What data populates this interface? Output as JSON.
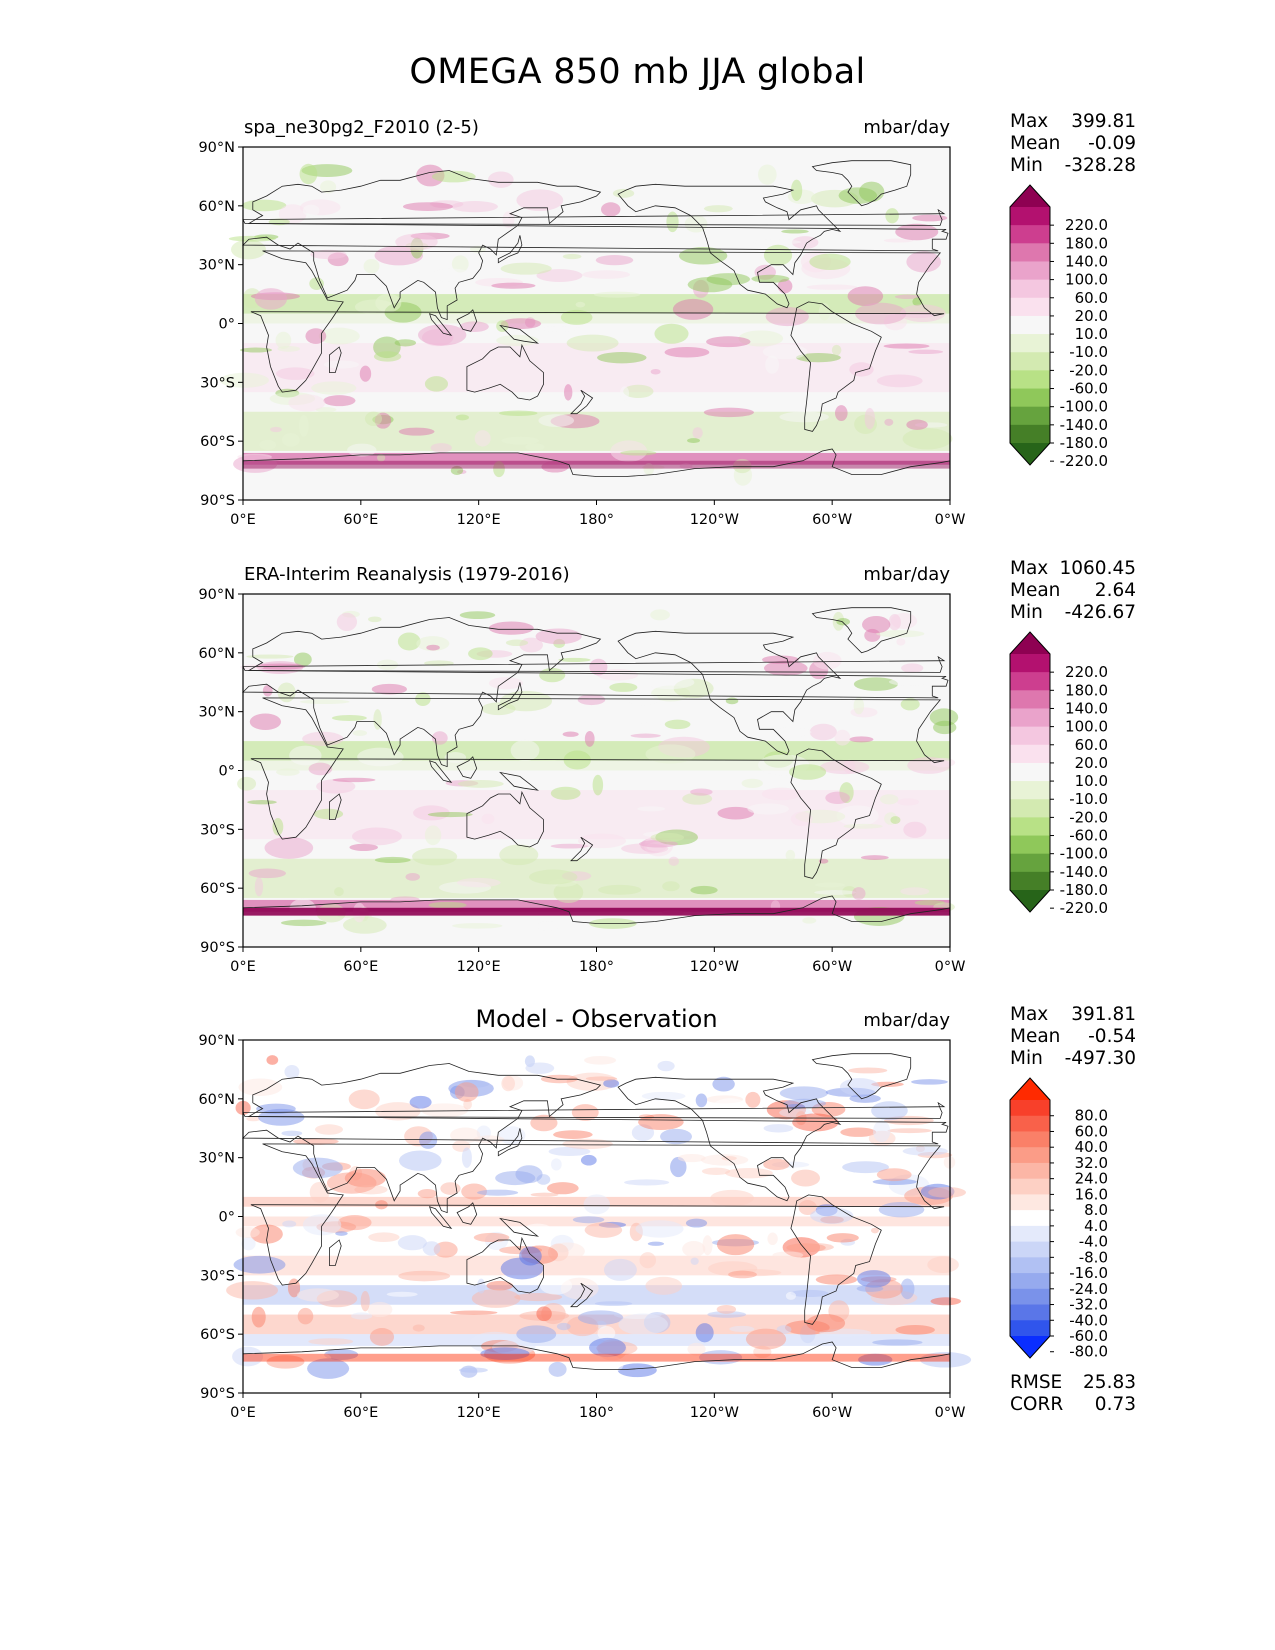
{
  "title": "OMEGA 850 mb JJA global",
  "units": "mbar/day",
  "x_ticks": [
    "0°E",
    "60°E",
    "120°E",
    "180°",
    "120°W",
    "60°W",
    "0°W"
  ],
  "y_ticks": [
    "90°N",
    "60°N",
    "30°N",
    "0°",
    "30°S",
    "60°S",
    "90°S"
  ],
  "panels": [
    {
      "left_title": "spa_ne30pg2_F2010 (2-5)",
      "center_title": "",
      "stats": {
        "max_label": "Max",
        "max": "399.81",
        "mean_label": "Mean",
        "mean": "-0.09",
        "min_label": "Min",
        "min": "-328.28"
      },
      "colorbar": {
        "labels": [
          "220.0",
          "180.0",
          "140.0",
          "100.0",
          "60.0",
          "20.0",
          "10.0",
          "-10.0",
          "-20.0",
          "-60.0",
          "-100.0",
          "-140.0",
          "-180.0",
          "-220.0"
        ],
        "colors": [
          "#8e0152",
          "#b3116f",
          "#cd3e8f",
          "#de77ae",
          "#eaa3cb",
          "#f4c7e0",
          "#fae1ee",
          "#f7f7f7",
          "#e8f3d6",
          "#d3eab1",
          "#b8e186",
          "#8fc85a",
          "#66a33e",
          "#457f27",
          "#276419"
        ]
      }
    },
    {
      "left_title": "ERA-Interim Reanalysis (1979-2016)",
      "center_title": "",
      "stats": {
        "max_label": "Max",
        "max": "1060.45",
        "mean_label": "Mean",
        "mean": "2.64",
        "min_label": "Min",
        "min": "-426.67"
      },
      "colorbar": {
        "labels": [
          "220.0",
          "180.0",
          "140.0",
          "100.0",
          "60.0",
          "20.0",
          "10.0",
          "-10.0",
          "-20.0",
          "-60.0",
          "-100.0",
          "-140.0",
          "-180.0",
          "-220.0"
        ],
        "colors": [
          "#8e0152",
          "#b3116f",
          "#cd3e8f",
          "#de77ae",
          "#eaa3cb",
          "#f4c7e0",
          "#fae1ee",
          "#f7f7f7",
          "#e8f3d6",
          "#d3eab1",
          "#b8e186",
          "#8fc85a",
          "#66a33e",
          "#457f27",
          "#276419"
        ]
      }
    },
    {
      "left_title": "",
      "center_title": "Model - Observation",
      "stats": {
        "max_label": "Max",
        "max": "391.81",
        "mean_label": "Mean",
        "mean": "-0.54",
        "min_label": "Min",
        "min": "-497.30"
      },
      "extra_stats": {
        "rmse_label": "RMSE",
        "rmse": "25.83",
        "corr_label": "CORR",
        "corr": "0.73"
      },
      "colorbar": {
        "labels": [
          "80.0",
          "60.0",
          "40.0",
          "32.0",
          "24.0",
          "16.0",
          "8.0",
          "4.0",
          "-4.0",
          "-8.0",
          "-16.0",
          "-24.0",
          "-32.0",
          "-40.0",
          "-60.0",
          "-80.0"
        ],
        "colors": [
          "#ff2a00",
          "#f8402a",
          "#f9614a",
          "#fa8068",
          "#fb9c87",
          "#fcb6a6",
          "#fdd0c4",
          "#fee8e1",
          "#ffffff",
          "#e4eafb",
          "#cbd6f7",
          "#b1c1f3",
          "#96aaee",
          "#7a92ea",
          "#5a76e8",
          "#3055ec",
          "#0a2eff"
        ]
      }
    }
  ],
  "chart_data": [
    {
      "type": "heatmap",
      "title": "spa_ne30pg2_F2010 (2-5)",
      "units": "mbar/day",
      "xlim": [
        0,
        360
      ],
      "ylim": [
        -90,
        90
      ],
      "stats": {
        "max": 399.81,
        "mean": -0.09,
        "min": -328.28
      },
      "levels": [
        -220,
        -180,
        -140,
        -100,
        -60,
        -20,
        -10,
        10,
        20,
        60,
        100,
        140,
        180,
        220
      ]
    },
    {
      "type": "heatmap",
      "title": "ERA-Interim Reanalysis (1979-2016)",
      "units": "mbar/day",
      "xlim": [
        0,
        360
      ],
      "ylim": [
        -90,
        90
      ],
      "stats": {
        "max": 1060.45,
        "mean": 2.64,
        "min": -426.67
      },
      "levels": [
        -220,
        -180,
        -140,
        -100,
        -60,
        -20,
        -10,
        10,
        20,
        60,
        100,
        140,
        180,
        220
      ]
    },
    {
      "type": "heatmap",
      "title": "Model - Observation",
      "units": "mbar/day",
      "xlim": [
        0,
        360
      ],
      "ylim": [
        -90,
        90
      ],
      "stats": {
        "max": 391.81,
        "mean": -0.54,
        "min": -497.3,
        "rmse": 25.83,
        "corr": 0.73
      },
      "levels": [
        -80,
        -60,
        -40,
        -32,
        -24,
        -16,
        -8,
        -4,
        4,
        8,
        16,
        24,
        32,
        40,
        60,
        80
      ]
    }
  ]
}
